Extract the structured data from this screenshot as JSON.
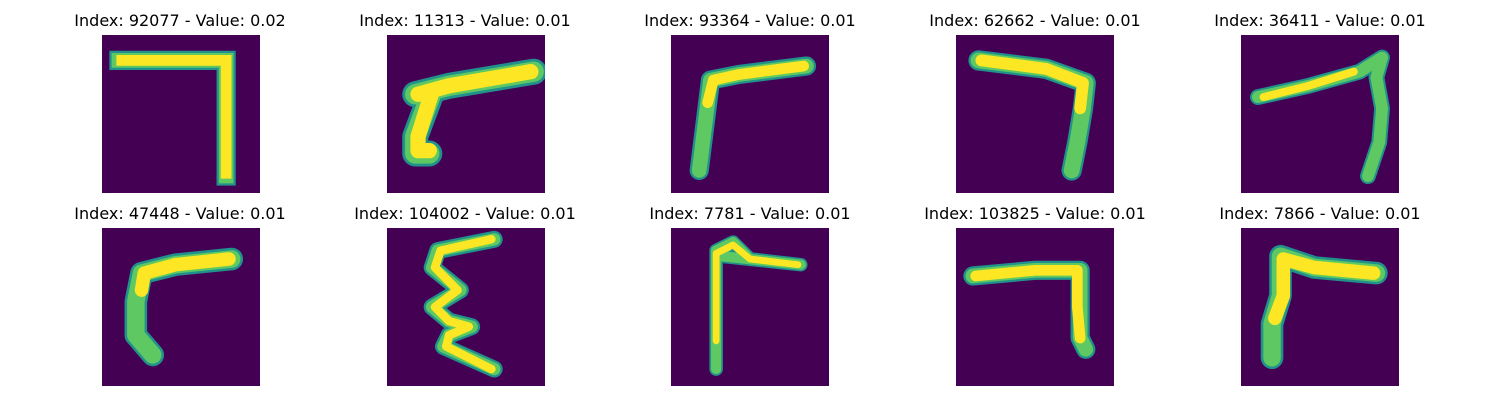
{
  "figure": {
    "background_color": "#ffffff",
    "panel_background_color": "#440154",
    "stroke_colors": {
      "core": "#fde725",
      "mid": "#5ec962",
      "edge": "#21918c"
    },
    "panels": [
      {
        "title": "Index: 92077 - Value: 0.02",
        "index": 92077,
        "value": 0.02,
        "glyph": "seven-shaped stroke"
      },
      {
        "title": "Index: 11313 - Value: 0.01",
        "index": 11313,
        "value": 0.01,
        "glyph": "slanted hook stroke"
      },
      {
        "title": "Index: 93364 - Value: 0.01",
        "index": 93364,
        "value": 0.01,
        "glyph": "gamma-shaped stroke"
      },
      {
        "title": "Index: 62662 - Value: 0.01",
        "index": 62662,
        "value": 0.01,
        "glyph": "seven-shaped stroke"
      },
      {
        "title": "Index: 36411 - Value: 0.01",
        "index": 36411,
        "value": 0.01,
        "glyph": "seven-shaped stroke"
      },
      {
        "title": "Index: 47448 - Value: 0.01",
        "index": 47448,
        "value": 0.01,
        "glyph": "gamma-shaped stroke"
      },
      {
        "title": "Index: 104002 - Value: 0.01",
        "index": 104002,
        "value": 0.01,
        "glyph": "zigzag stroke"
      },
      {
        "title": "Index: 7781 - Value: 0.01",
        "index": 7781,
        "value": 0.01,
        "glyph": "F-shaped stroke"
      },
      {
        "title": "Index: 103825 - Value: 0.01",
        "index": 103825,
        "value": 0.01,
        "glyph": "seven-shaped stroke"
      },
      {
        "title": "Index: 7866 - Value: 0.01",
        "index": 7866,
        "value": 0.01,
        "glyph": "gamma-shaped stroke"
      }
    ]
  }
}
